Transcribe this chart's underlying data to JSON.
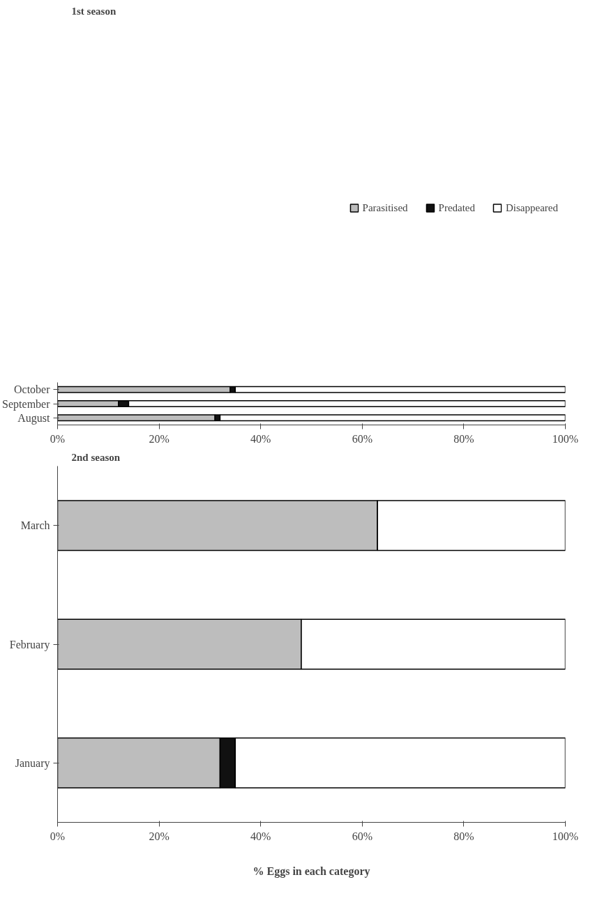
{
  "chart_data": [
    {
      "type": "bar",
      "title": "1st season",
      "orientation": "horizontal",
      "stacked": true,
      "legend": "top",
      "categories": [
        "October",
        "September",
        "August"
      ],
      "series": [
        {
          "name": "Parasitised",
          "color": "#bdbdbd",
          "values": [
            34,
            12,
            31
          ]
        },
        {
          "name": "Predated",
          "color": "#111111",
          "values": [
            1,
            2,
            1
          ]
        },
        {
          "name": "Disappeared",
          "color": "#ffffff",
          "values": [
            65,
            86,
            68
          ]
        }
      ],
      "xlim": [
        0,
        100
      ],
      "xticks": [
        {
          "value": 0,
          "label": "0%"
        },
        {
          "value": 20,
          "label": "20%"
        },
        {
          "value": 40,
          "label": "40%"
        },
        {
          "value": 60,
          "label": "60%"
        },
        {
          "value": 80,
          "label": "80%"
        },
        {
          "value": 100,
          "label": "100%"
        }
      ]
    },
    {
      "type": "bar",
      "title": "2nd season",
      "orientation": "horizontal",
      "stacked": true,
      "xlabel": "% Eggs in each category",
      "categories": [
        "March",
        "February",
        "January"
      ],
      "series": [
        {
          "color": "#bdbdbd",
          "values": [
            63,
            48,
            32
          ]
        },
        {
          "color": "#111111",
          "values": [
            0,
            0,
            3
          ]
        },
        {
          "color": "#ffffff",
          "values": [
            37,
            52,
            65
          ]
        }
      ],
      "xlim": [
        0,
        100
      ],
      "xticks": [
        {
          "value": 0,
          "label": "0%"
        },
        {
          "value": 20,
          "label": "20%"
        },
        {
          "value": 40,
          "label": "40%"
        },
        {
          "value": 60,
          "label": "60%"
        },
        {
          "value": 80,
          "label": "80%"
        },
        {
          "value": 100,
          "label": "100%"
        }
      ]
    }
  ]
}
